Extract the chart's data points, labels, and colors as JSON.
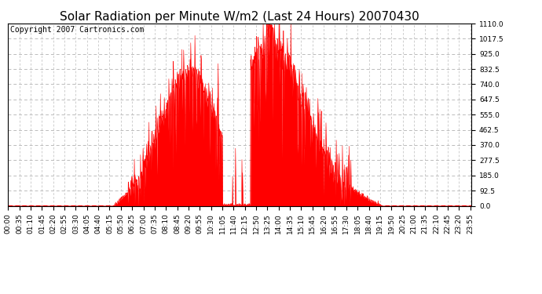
{
  "title": "Solar Radiation per Minute W/m2 (Last 24 Hours) 20070430",
  "copyright_text": "Copyright 2007 Cartronics.com",
  "y_min": 0.0,
  "y_max": 1110.0,
  "y_ticks": [
    0.0,
    92.5,
    185.0,
    277.5,
    370.0,
    462.5,
    555.0,
    647.5,
    740.0,
    832.5,
    925.0,
    1017.5,
    1110.0
  ],
  "fill_color": "#ff0000",
  "line_color": "#ff0000",
  "bg_color": "#ffffff",
  "grid_color": "#bbbbbb",
  "dashed_line_color": "#ff0000",
  "title_fontsize": 11,
  "copyright_fontsize": 7,
  "tick_fontsize": 6.5
}
